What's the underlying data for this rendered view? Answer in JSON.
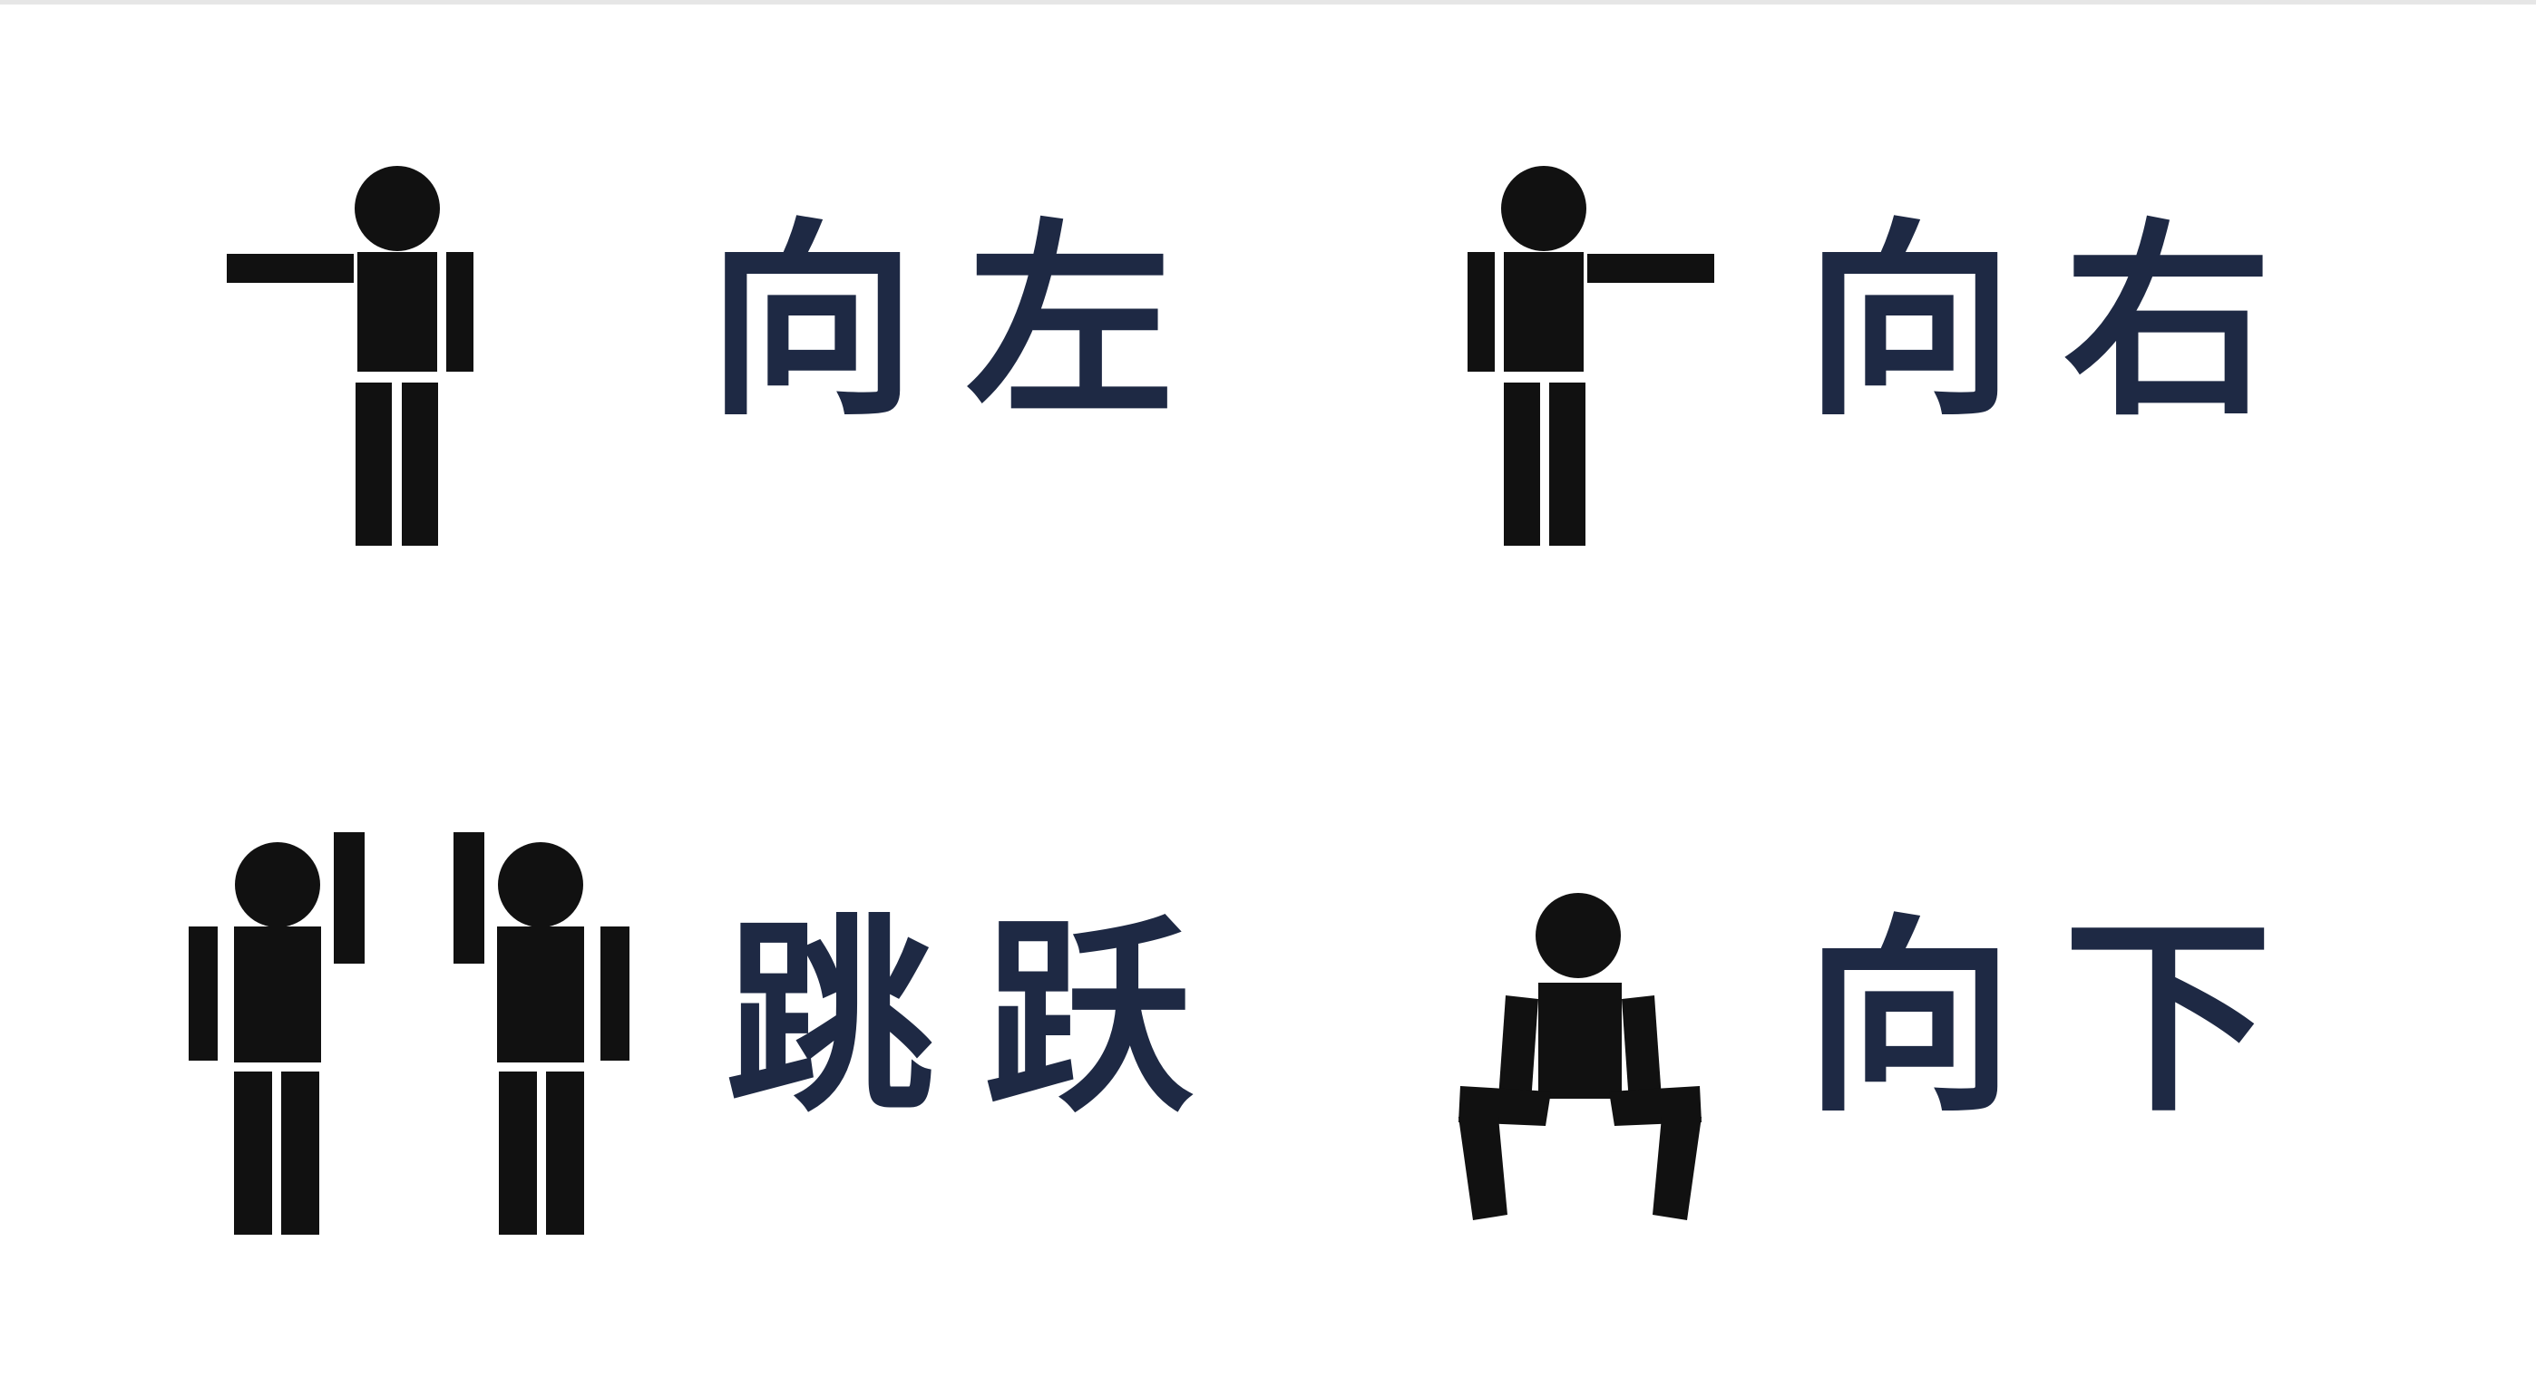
{
  "gestures": [
    {
      "id": "left",
      "label": "向左",
      "icon": "person-pointing-left-icon"
    },
    {
      "id": "right",
      "label": "向右",
      "icon": "person-pointing-right-icon"
    },
    {
      "id": "jump",
      "label": "跳跃",
      "icon": "persons-arms-raised-icon"
    },
    {
      "id": "down",
      "label": "向下",
      "icon": "person-squatting-icon"
    }
  ],
  "colors": {
    "figure": "#111111",
    "text": "#1e2944",
    "background": "#ffffff"
  }
}
